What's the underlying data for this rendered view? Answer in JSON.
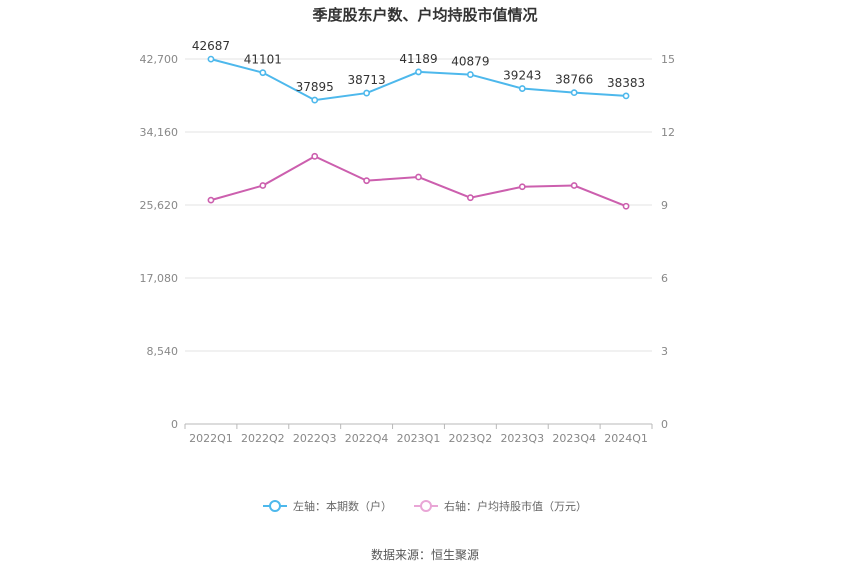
{
  "chart_data": {
    "type": "line",
    "title": "季度股东户数、户均持股市值情况",
    "categories": [
      "2022Q1",
      "2022Q2",
      "2022Q3",
      "2022Q4",
      "2023Q1",
      "2023Q2",
      "2023Q3",
      "2023Q4",
      "2024Q1"
    ],
    "left_axis": {
      "ylim": [
        0,
        42700
      ],
      "ticks": [
        0,
        8540,
        17080,
        25620,
        34160,
        42700
      ],
      "tick_labels": [
        "0",
        "8,540",
        "17,080",
        "25,620",
        "34,160",
        "42,700"
      ]
    },
    "right_axis": {
      "ylim": [
        0,
        15
      ],
      "ticks": [
        0,
        3,
        6,
        9,
        12,
        15
      ],
      "tick_labels": [
        "0",
        "3",
        "6",
        "9",
        "12",
        "15"
      ]
    },
    "series": [
      {
        "name": "左轴：本期数（户）",
        "axis": "left",
        "color": "#4db8ec",
        "values": [
          42687,
          41101,
          37895,
          38713,
          41189,
          40879,
          39243,
          38766,
          38383
        ],
        "labels": [
          "42687",
          "41101",
          "37895",
          "38713",
          "41189",
          "40879",
          "39243",
          "38766",
          "38383"
        ]
      },
      {
        "name": "右轴：户均持股市值（万元）",
        "axis": "right",
        "color": "#cc5fae",
        "values": [
          9.2,
          9.8,
          11.0,
          10.0,
          10.15,
          9.3,
          9.75,
          9.8,
          8.95
        ]
      }
    ],
    "grid": true,
    "legend_position": "bottom"
  },
  "legend": {
    "left_label": "左轴：本期数（户）",
    "right_label": "右轴：户均持股市值（万元）",
    "left_color": "#4db8ec",
    "right_color": "#e9a6d6"
  },
  "source": "数据来源：恒生聚源"
}
